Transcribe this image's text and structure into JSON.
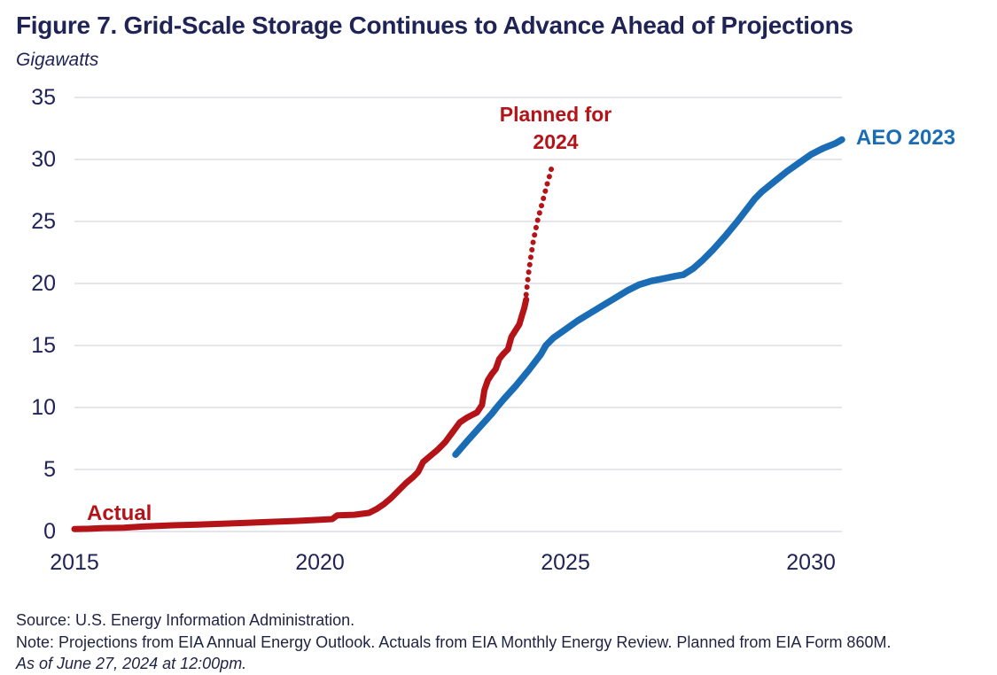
{
  "header": {
    "title": "Figure 7. Grid-Scale Storage Continues to Advance Ahead of Projections",
    "subtitle": "Gigawatts"
  },
  "chart_data": {
    "type": "line",
    "title": "Figure 7. Grid-Scale Storage Continues to Advance Ahead of Projections",
    "ylabel": "Gigawatts",
    "xlabel": "",
    "grid": true,
    "legend_position": "inline-annotations",
    "x_axis": {
      "min": 2015,
      "max": 2030.63,
      "ticks": [
        2015,
        2020,
        2025,
        2030
      ]
    },
    "y_axis": {
      "min": 0,
      "max": 35,
      "ticks": [
        0,
        5,
        10,
        15,
        20,
        25,
        30,
        35
      ]
    },
    "colors": {
      "actual": "#b41318",
      "projection": "#1a6cb5",
      "text": "#1f2355",
      "gridline": "#dcdde6"
    },
    "series": [
      {
        "name": "Actual",
        "style": "solid",
        "color_key": "actual",
        "width": 7,
        "points": [
          [
            2015.0,
            0.2
          ],
          [
            2015.3,
            0.22
          ],
          [
            2015.6,
            0.28
          ],
          [
            2016.0,
            0.3
          ],
          [
            2016.4,
            0.4
          ],
          [
            2017.0,
            0.5
          ],
          [
            2017.5,
            0.55
          ],
          [
            2018.0,
            0.62
          ],
          [
            2018.5,
            0.7
          ],
          [
            2019.0,
            0.78
          ],
          [
            2019.5,
            0.85
          ],
          [
            2020.0,
            0.95
          ],
          [
            2020.25,
            1.0
          ],
          [
            2020.35,
            1.3
          ],
          [
            2020.7,
            1.35
          ],
          [
            2021.0,
            1.5
          ],
          [
            2021.15,
            1.8
          ],
          [
            2021.3,
            2.2
          ],
          [
            2021.45,
            2.7
          ],
          [
            2021.6,
            3.3
          ],
          [
            2021.75,
            3.9
          ],
          [
            2021.9,
            4.4
          ],
          [
            2022.0,
            4.8
          ],
          [
            2022.1,
            5.6
          ],
          [
            2022.25,
            6.1
          ],
          [
            2022.4,
            6.6
          ],
          [
            2022.55,
            7.2
          ],
          [
            2022.7,
            8.0
          ],
          [
            2022.85,
            8.8
          ],
          [
            2023.0,
            9.2
          ],
          [
            2023.1,
            9.4
          ],
          [
            2023.2,
            9.6
          ],
          [
            2023.3,
            10.2
          ],
          [
            2023.35,
            11.4
          ],
          [
            2023.42,
            12.2
          ],
          [
            2023.5,
            12.7
          ],
          [
            2023.58,
            13.1
          ],
          [
            2023.65,
            13.9
          ],
          [
            2023.73,
            14.3
          ],
          [
            2023.83,
            14.7
          ],
          [
            2023.9,
            15.7
          ],
          [
            2023.98,
            16.2
          ],
          [
            2024.06,
            16.7
          ],
          [
            2024.12,
            17.5
          ],
          [
            2024.16,
            18.0
          ],
          [
            2024.2,
            18.7
          ]
        ]
      },
      {
        "name": "Planned for 2024",
        "style": "dotted",
        "color_key": "actual",
        "width": 6,
        "points": [
          [
            2024.2,
            19.1
          ],
          [
            2024.23,
            20.2
          ],
          [
            2024.26,
            21.2
          ],
          [
            2024.3,
            22.3
          ],
          [
            2024.34,
            23.3
          ],
          [
            2024.39,
            24.3
          ],
          [
            2024.44,
            25.2
          ],
          [
            2024.5,
            26.1
          ],
          [
            2024.56,
            27.0
          ],
          [
            2024.62,
            27.9
          ],
          [
            2024.67,
            28.6
          ],
          [
            2024.71,
            29.2
          ],
          [
            2024.74,
            29.6
          ]
        ]
      },
      {
        "name": "AEO 2023",
        "style": "solid",
        "color_key": "projection",
        "width": 7.5,
        "points": [
          [
            2022.76,
            6.2
          ],
          [
            2023.0,
            7.3
          ],
          [
            2023.25,
            8.4
          ],
          [
            2023.5,
            9.5
          ],
          [
            2023.6,
            10.0
          ],
          [
            2023.75,
            10.7
          ],
          [
            2024.0,
            11.8
          ],
          [
            2024.25,
            13.0
          ],
          [
            2024.5,
            14.3
          ],
          [
            2024.6,
            15.0
          ],
          [
            2024.75,
            15.6
          ],
          [
            2025.0,
            16.3
          ],
          [
            2025.25,
            17.0
          ],
          [
            2025.5,
            17.6
          ],
          [
            2025.75,
            18.2
          ],
          [
            2026.0,
            18.8
          ],
          [
            2026.25,
            19.4
          ],
          [
            2026.5,
            19.9
          ],
          [
            2026.75,
            20.2
          ],
          [
            2027.0,
            20.4
          ],
          [
            2027.25,
            20.6
          ],
          [
            2027.4,
            20.7
          ],
          [
            2027.6,
            21.2
          ],
          [
            2027.8,
            21.9
          ],
          [
            2028.0,
            22.7
          ],
          [
            2028.25,
            23.8
          ],
          [
            2028.5,
            25.0
          ],
          [
            2028.85,
            26.8
          ],
          [
            2029.0,
            27.4
          ],
          [
            2029.25,
            28.2
          ],
          [
            2029.5,
            29.0
          ],
          [
            2029.75,
            29.7
          ],
          [
            2030.0,
            30.4
          ],
          [
            2030.25,
            30.9
          ],
          [
            2030.5,
            31.3
          ],
          [
            2030.63,
            31.6
          ]
        ]
      }
    ],
    "annotations": {
      "actual": "Actual",
      "planned_line1": "Planned for",
      "planned_line2": "2024",
      "aeo": "AEO 2023"
    }
  },
  "footer": {
    "source": "Source: U.S. Energy Information Administration.",
    "note": "Note: Projections from EIA Annual Energy Outlook. Actuals from EIA Monthly Energy Review. Planned from EIA Form 860M.",
    "as_of": "As of June 27, 2024 at 12:00pm."
  }
}
